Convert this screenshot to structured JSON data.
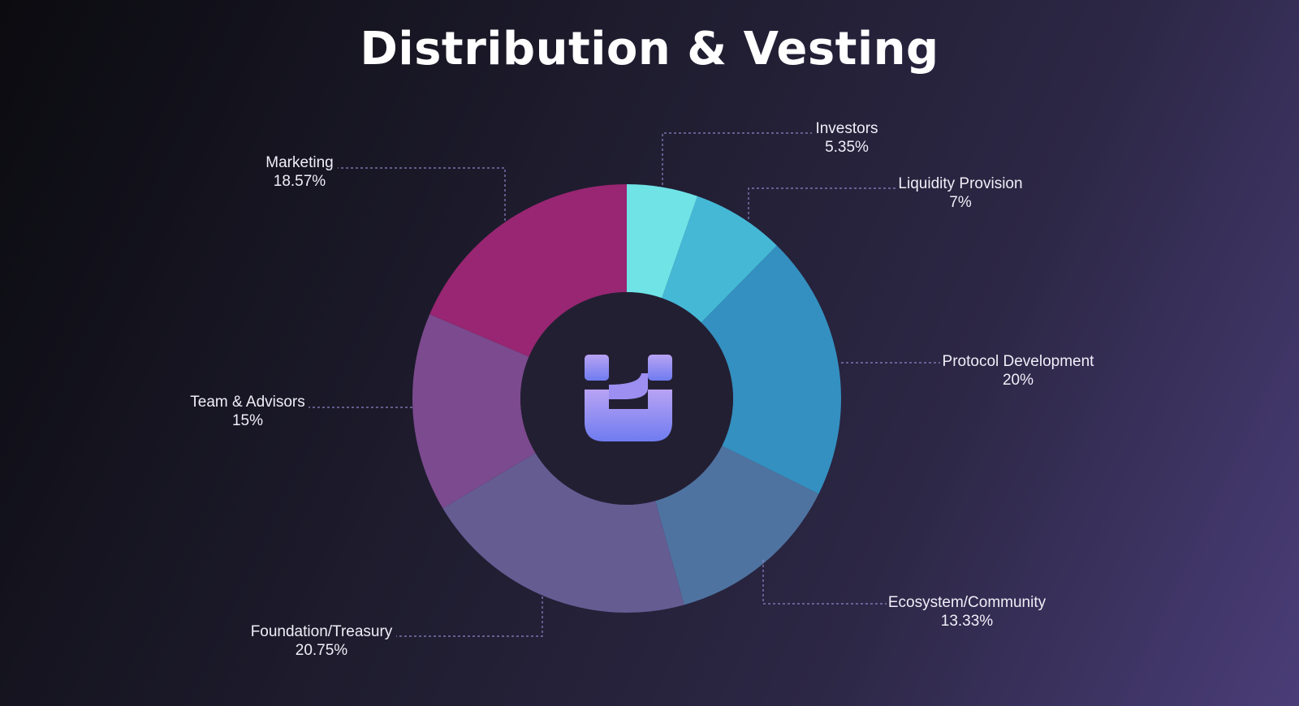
{
  "title": "Distribution & Vesting",
  "chart_data": {
    "type": "pie",
    "donut": true,
    "title": "Distribution & Vesting",
    "slices": [
      {
        "label": "Investors",
        "value": 5.35,
        "display": "5.35%",
        "color": "#6fe3e6"
      },
      {
        "label": "Liquidity Provision",
        "value": 7,
        "display": "7%",
        "color": "#45b8d6"
      },
      {
        "label": "Protocol Development",
        "value": 20,
        "display": "20%",
        "color": "#3490c0"
      },
      {
        "label": "Ecosystem/Community",
        "value": 13.33,
        "display": "13.33%",
        "color": "#4f73a0"
      },
      {
        "label": "Foundation/Treasury",
        "value": 20.75,
        "display": "20.75%",
        "color": "#655c92"
      },
      {
        "label": "Team & Advisors",
        "value": 15,
        "display": "15%",
        "color": "#7c4a8e"
      },
      {
        "label": "Marketing",
        "value": 18.57,
        "display": "18.57%",
        "color": "#982672"
      }
    ],
    "center_icon": "brand-logo-icon",
    "center_color": "#231f33"
  }
}
